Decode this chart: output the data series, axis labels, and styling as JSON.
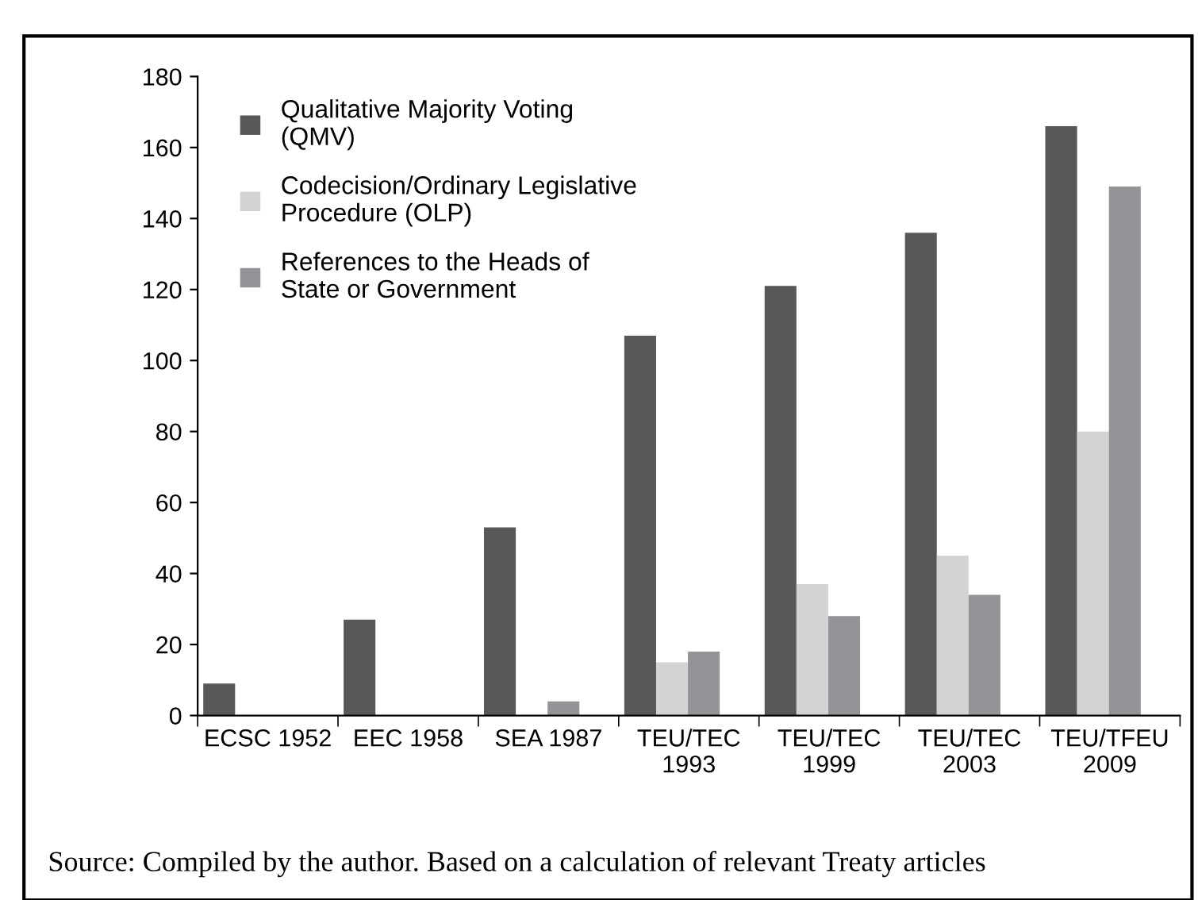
{
  "chart_data": {
    "type": "bar",
    "categories": [
      "ECSC 1952",
      "EEC 1958",
      "SEA 1987",
      "TEU/TEC\n1993",
      "TEU/TEC\n1999",
      "TEU/TEC\n2003",
      "TEU/TFEU\n2009"
    ],
    "series": [
      {
        "name": "Qualitative Majority Voting\n(QMV)",
        "color": "#58585a",
        "values": [
          9,
          27,
          53,
          107,
          121,
          136,
          166
        ]
      },
      {
        "name": "Codecision/Ordinary Legislative\nProcedure (OLP)",
        "color": "#d2d3d5",
        "values": [
          0,
          0,
          0,
          15,
          37,
          45,
          80
        ]
      },
      {
        "name": "References to the Heads of\nState or Government",
        "color": "#939497",
        "values": [
          0,
          0,
          4,
          18,
          28,
          34,
          149
        ]
      }
    ],
    "ylim": [
      0,
      180
    ],
    "yticks": [
      0,
      20,
      40,
      60,
      80,
      100,
      120,
      140,
      160,
      180
    ],
    "grid": false,
    "legend": "top left",
    "annotations": [
      "Source: Compiled by the author. Based on a calculation of relevant Treaty articles"
    ]
  }
}
